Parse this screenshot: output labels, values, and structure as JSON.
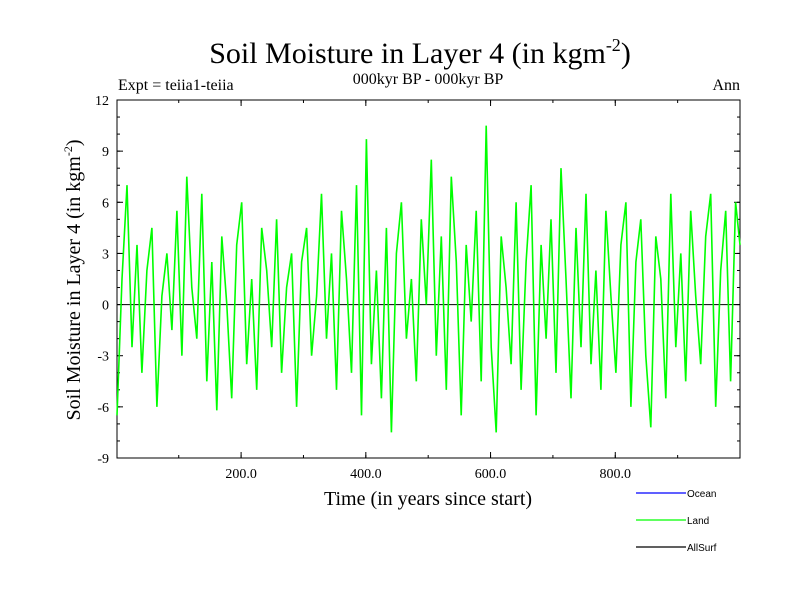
{
  "chart_data": {
    "type": "line",
    "title_main": "Soil Moisture in Layer 4 (in kgm",
    "title_sup": "-2",
    "title_close": ")",
    "subtitle": "000kyr BP - 000kyr BP",
    "experiment": "Expt = teiia1-teiia",
    "season": "Ann",
    "xlabel": "Time (in years since start)",
    "ylabel_main": "Soil Moisture in Layer 4 (in kgm",
    "ylabel_sup": "-2",
    "ylabel_close": ")",
    "xlim": [
      1,
      1000
    ],
    "ylim": [
      -9,
      12
    ],
    "xticks": [
      200,
      400,
      600,
      800
    ],
    "xtick_labels": [
      "200.0",
      "400.0",
      "600.0",
      "800.0"
    ],
    "yticks": [
      -9,
      -6,
      -3,
      0,
      3,
      6,
      9,
      12
    ],
    "ytick_labels": [
      "-9",
      "-6",
      "-3",
      "0",
      "3",
      "6",
      "9",
      "12"
    ],
    "zero_line": 0,
    "legend_position": "bottom-right, below plot",
    "legend": [
      {
        "label": "Ocean",
        "color": "#0000ff"
      },
      {
        "label": "Land",
        "color": "#00ff00"
      },
      {
        "label": "AllSurf",
        "color": "#000000"
      }
    ],
    "series": [
      {
        "name": "Land",
        "color": "#00ff00",
        "x": [
          1,
          9,
          17,
          25,
          33,
          41,
          49,
          57,
          65,
          73,
          81,
          89,
          97,
          105,
          113,
          121,
          129,
          137,
          145,
          153,
          161,
          169,
          177,
          185,
          193,
          201,
          209,
          217,
          225,
          233,
          241,
          249,
          257,
          265,
          273,
          281,
          289,
          297,
          305,
          313,
          321,
          329,
          337,
          345,
          353,
          361,
          369,
          377,
          385,
          393,
          401,
          409,
          417,
          425,
          433,
          441,
          449,
          457,
          465,
          473,
          481,
          489,
          497,
          505,
          513,
          521,
          529,
          537,
          545,
          553,
          561,
          569,
          577,
          585,
          593,
          601,
          609,
          617,
          625,
          633,
          641,
          649,
          657,
          665,
          673,
          681,
          689,
          697,
          705,
          713,
          721,
          729,
          737,
          745,
          753,
          761,
          769,
          777,
          785,
          793,
          801,
          809,
          817,
          825,
          833,
          841,
          849,
          857,
          865,
          873,
          881,
          889,
          897,
          905,
          913,
          921,
          929,
          937,
          945,
          953,
          961,
          969,
          977,
          985,
          993,
          1000
        ],
        "y": [
          -6.5,
          1.5,
          7.0,
          -2.5,
          3.5,
          -4.0,
          2.0,
          4.5,
          -6.0,
          0.5,
          3.0,
          -1.5,
          5.5,
          -3.0,
          7.5,
          1.0,
          -2.0,
          6.5,
          -4.5,
          2.5,
          -6.2,
          4.0,
          0.0,
          -5.5,
          3.5,
          6.0,
          -3.5,
          1.5,
          -5.0,
          4.5,
          2.0,
          -2.5,
          5.0,
          -4.0,
          1.0,
          3.0,
          -6.0,
          2.5,
          4.5,
          -3.0,
          0.5,
          6.5,
          -2.0,
          3.0,
          -5.0,
          5.5,
          1.5,
          -4.0,
          7.0,
          -6.5,
          9.7,
          -3.5,
          2.0,
          -5.5,
          4.5,
          -7.5,
          3.0,
          6.0,
          -2.0,
          1.5,
          -4.5,
          5.0,
          0.0,
          8.5,
          -3.0,
          4.0,
          -5.0,
          7.5,
          2.5,
          -6.5,
          3.5,
          -1.0,
          5.5,
          -4.5,
          10.5,
          -2.5,
          -7.5,
          4.0,
          1.0,
          -3.5,
          6.0,
          -5.0,
          2.5,
          7.0,
          -6.5,
          3.5,
          -2.0,
          5.0,
          -4.0,
          8.0,
          1.5,
          -5.5,
          4.5,
          -2.5,
          6.5,
          -3.5,
          2.0,
          -5.0,
          5.5,
          0.5,
          -4.0,
          3.5,
          6.0,
          -6.0,
          2.5,
          5.0,
          -3.0,
          -7.2,
          4.0,
          1.5,
          -5.5,
          6.5,
          -2.5,
          3.0,
          -4.5,
          5.5,
          0.5,
          -3.5,
          4.0,
          6.5,
          -6.0,
          2.0,
          5.5,
          -4.5,
          6.0,
          3.5
        ]
      }
    ]
  }
}
